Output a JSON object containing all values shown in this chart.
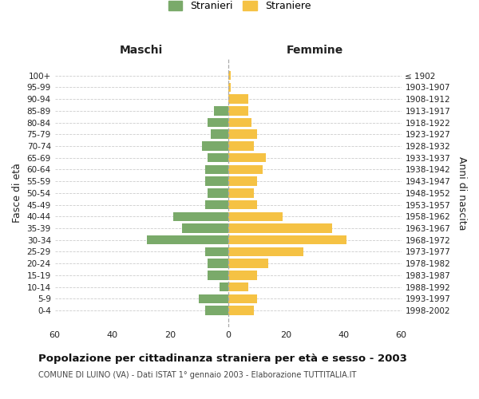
{
  "age_groups": [
    "0-4",
    "5-9",
    "10-14",
    "15-19",
    "20-24",
    "25-29",
    "30-34",
    "35-39",
    "40-44",
    "45-49",
    "50-54",
    "55-59",
    "60-64",
    "65-69",
    "70-74",
    "75-79",
    "80-84",
    "85-89",
    "90-94",
    "95-99",
    "100+"
  ],
  "birth_years": [
    "1998-2002",
    "1993-1997",
    "1988-1992",
    "1983-1987",
    "1978-1982",
    "1973-1977",
    "1968-1972",
    "1963-1967",
    "1958-1962",
    "1953-1957",
    "1948-1952",
    "1943-1947",
    "1938-1942",
    "1933-1937",
    "1928-1932",
    "1923-1927",
    "1918-1922",
    "1913-1917",
    "1908-1912",
    "1903-1907",
    "≤ 1902"
  ],
  "maschi": [
    8,
    10,
    3,
    7,
    7,
    8,
    28,
    16,
    19,
    8,
    7,
    8,
    8,
    7,
    9,
    6,
    7,
    5,
    0,
    0,
    0
  ],
  "femmine": [
    9,
    10,
    7,
    10,
    14,
    26,
    41,
    36,
    19,
    10,
    9,
    10,
    12,
    13,
    9,
    10,
    8,
    7,
    7,
    1,
    1
  ],
  "color_maschi": "#7aaa6a",
  "color_femmine": "#f5c244",
  "title": "Popolazione per cittadinanza straniera per età e sesso - 2003",
  "subtitle": "COMUNE DI LUINO (VA) - Dati ISTAT 1° gennaio 2003 - Elaborazione TUTTITALIA.IT",
  "label_maschi": "Maschi",
  "label_femmine": "Femmine",
  "label_stranieri": "Stranieri",
  "label_straniere": "Straniere",
  "ylabel_left": "Fasce di età",
  "ylabel_right": "Anni di nascita",
  "xlim": 60,
  "background_color": "#ffffff",
  "grid_color": "#cccccc",
  "center_line_color": "#aaaaaa",
  "text_color": "#222222",
  "subtitle_color": "#444444"
}
